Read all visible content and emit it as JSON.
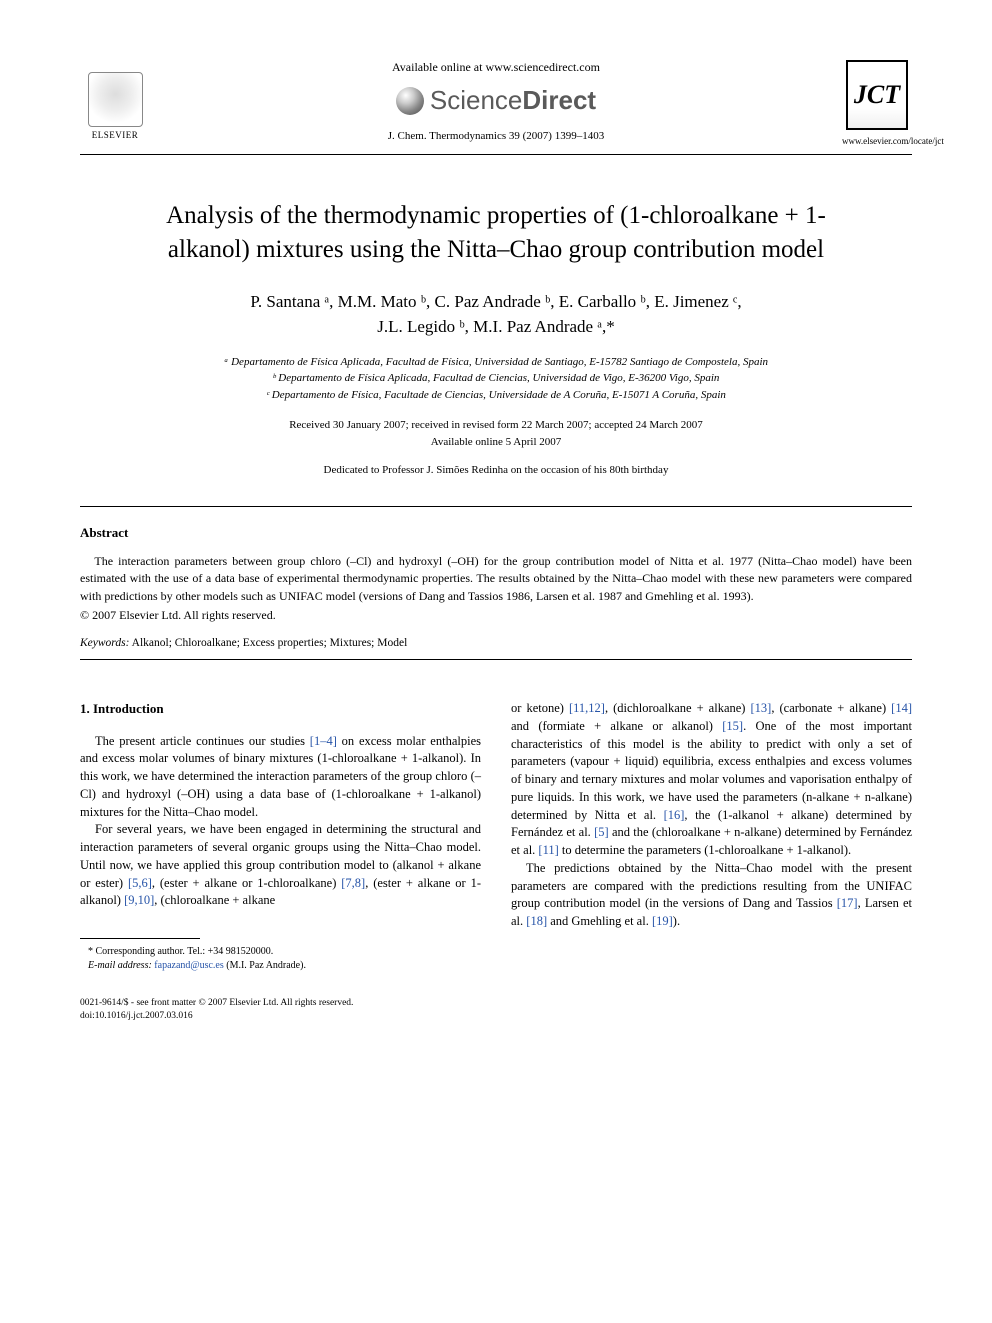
{
  "header": {
    "elsevier_label": "ELSEVIER",
    "available_online": "Available online at www.sciencedirect.com",
    "sciencedirect_light": "Science",
    "sciencedirect_bold": "Direct",
    "journal_ref": "J. Chem. Thermodynamics 39 (2007) 1399–1403",
    "jct_label": "JCT",
    "jct_url": "www.elsevier.com/locate/jct"
  },
  "title": "Analysis of the thermodynamic properties of (1-chloroalkane + 1-alkanol) mixtures using the Nitta–Chao group contribution model",
  "authors_line1": "P. Santana ᵃ, M.M. Mato ᵇ, C. Paz Andrade ᵇ, E. Carballo ᵇ, E. Jimenez ᶜ,",
  "authors_line2": "J.L. Legido ᵇ, M.I. Paz Andrade ᵃ,*",
  "affiliations": {
    "a": "ᵃ Departamento de Física Aplicada, Facultad de Física, Universidad de Santiago, E-15782 Santiago de Compostela, Spain",
    "b": "ᵇ Departamento de Física Aplicada, Facultad de Ciencias, Universidad de Vigo, E-36200 Vigo, Spain",
    "c": "ᶜ Departamento de Física, Facultade de Ciencias, Universidade de A Coruña, E-15071 A Coruña, Spain"
  },
  "dates": {
    "line1": "Received 30 January 2007; received in revised form 22 March 2007; accepted 24 March 2007",
    "line2": "Available online 5 April 2007"
  },
  "dedication": "Dedicated to Professor J. Simões Redinha on the occasion of his 80th birthday",
  "abstract": {
    "heading": "Abstract",
    "body": "The interaction parameters between group chloro (–Cl) and hydroxyl (–OH) for the group contribution model of Nitta et al. 1977 (Nitta–Chao model) have been estimated with the use of a data base of experimental thermodynamic properties. The results obtained by the Nitta–Chao model with these new parameters were compared with predictions by other models such as UNIFAC model (versions of Dang and Tassios 1986, Larsen et al. 1987 and Gmehling et al. 1993).",
    "copyright": "© 2007 Elsevier Ltd. All rights reserved."
  },
  "keywords": {
    "label": "Keywords:",
    "list": "Alkanol; Chloroalkane; Excess properties; Mixtures; Model"
  },
  "section1": {
    "heading": "1. Introduction",
    "p1_a": "The present article continues our studies ",
    "p1_ref1": "[1–4]",
    "p1_b": " on excess molar enthalpies and excess molar volumes of binary mixtures (1-chloroalkane + 1-alkanol). In this work, we have determined the interaction parameters of the group chloro (–Cl) and hydroxyl (–OH) using a data base of (1-chloroalkane + 1-alkanol) mixtures for the Nitta–Chao model.",
    "p2_a": "For several years, we have been engaged in determining the structural and interaction parameters of several organic groups using the Nitta–Chao model. Until now, we have applied this group contribution model to (alkanol + alkane or ester) ",
    "p2_ref1": "[5,6]",
    "p2_b": ", (ester + alkane or 1-chloroalkane) ",
    "p2_ref2": "[7,8]",
    "p2_c": ", (ester + alkane or 1-alkanol) ",
    "p2_ref3": "[9,10]",
    "p2_d": ", (chloroalkane + alkane",
    "col2_a": "or ketone) ",
    "col2_ref1": "[11,12]",
    "col2_b": ", (dichloroalkane + alkane) ",
    "col2_ref2": "[13]",
    "col2_c": ", (carbonate + alkane) ",
    "col2_ref3": "[14]",
    "col2_d": " and (formiate + alkane or alkanol) ",
    "col2_ref4": "[15]",
    "col2_e": ". One of the most important characteristics of this model is the ability to predict with only a set of parameters (vapour + liquid) equilibria, excess enthalpies and excess volumes of binary and ternary mixtures and molar volumes and vaporisation enthalpy of pure liquids. In this work, we have used the parameters (n-alkane + n-alkane) determined by Nitta et al. ",
    "col2_ref5": "[16]",
    "col2_f": ", the (1-alkanol + alkane) determined by Fernández et al. ",
    "col2_ref6": "[5]",
    "col2_g": " and the (chloroalkane + n-alkane) determined by Fernández et al. ",
    "col2_ref7": "[11]",
    "col2_h": " to determine the parameters (1-chloroalkane + 1-alkanol).",
    "p3_a": "The predictions obtained by the Nitta–Chao model with the present parameters are compared with the predictions resulting from the UNIFAC group contribution model (in the versions of Dang and Tassios ",
    "p3_ref1": "[17]",
    "p3_b": ", Larsen et al. ",
    "p3_ref2": "[18]",
    "p3_c": " and Gmehling et al. ",
    "p3_ref3": "[19]",
    "p3_d": ")."
  },
  "footnote": {
    "corr": "* Corresponding author. Tel.: +34 981520000.",
    "email_label": "E-mail address:",
    "email": "fapazand@usc.es",
    "email_name": "(M.I. Paz Andrade)."
  },
  "footer": {
    "line1": "0021-9614/$ - see front matter © 2007 Elsevier Ltd. All rights reserved.",
    "line2": "doi:10.1016/j.jct.2007.03.016"
  },
  "colors": {
    "link": "#2754a8",
    "text": "#000000",
    "bg": "#ffffff"
  }
}
